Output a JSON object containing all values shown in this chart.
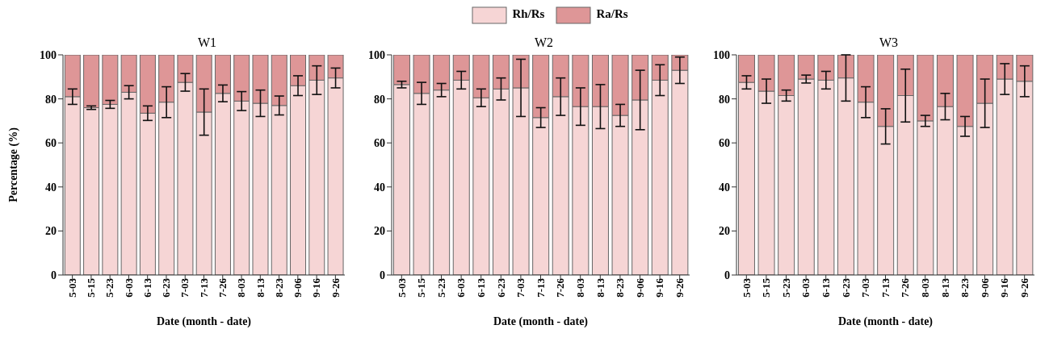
{
  "chart_data": [
    {
      "type": "bar",
      "title": "W1",
      "xlabel": "Date (month - date)",
      "ylabel": "Percentage (%)",
      "stacked": true,
      "legend": "top",
      "grid": false,
      "categories": [
        "5-03",
        "5-15",
        "5-23",
        "6-03",
        "6-13",
        "6-23",
        "7-03",
        "7-13",
        "7-26",
        "8-03",
        "8-13",
        "8-23",
        "9-06",
        "9-16",
        "9-26"
      ],
      "ylim": [
        0,
        100
      ],
      "yticks": [
        0,
        20,
        40,
        60,
        80,
        100
      ],
      "series": [
        {
          "name": "Rh/Rs",
          "color": "#f6d5d5",
          "values": [
            81,
            76,
            77.5,
            83,
            73.5,
            78.5,
            87.5,
            74,
            82.5,
            79,
            78,
            77,
            86,
            88.5,
            89.5
          ],
          "errors": [
            3.5,
            0.8,
            1.8,
            3,
            3.3,
            7,
            4,
            10.5,
            3.8,
            4.3,
            6,
            4.3,
            4.5,
            6.5,
            4.5
          ]
        },
        {
          "name": "Ra/Rs",
          "color": "#de9697",
          "values": [
            19,
            24,
            22.5,
            17,
            26.5,
            21.5,
            12.5,
            26,
            17.5,
            21,
            22,
            23,
            14,
            11.5,
            10.5
          ]
        }
      ]
    },
    {
      "type": "bar",
      "title": "W2",
      "xlabel": "Date (month - date)",
      "stacked": true,
      "grid": false,
      "categories": [
        "5-03",
        "5-15",
        "5-23",
        "6-03",
        "6-13",
        "6-23",
        "7-03",
        "7-13",
        "7-26",
        "8-03",
        "8-13",
        "8-23",
        "9-06",
        "9-16",
        "9-26"
      ],
      "ylim": [
        0,
        100
      ],
      "yticks": [
        0,
        20,
        40,
        60,
        80,
        100
      ],
      "series": [
        {
          "color": "#f6d5d5",
          "values": [
            86.5,
            82.5,
            84,
            88.5,
            80.5,
            84.5,
            85,
            71.5,
            81,
            76.5,
            76.5,
            72.5,
            79.5,
            88.5,
            93
          ],
          "errors": [
            1.5,
            5,
            3,
            4,
            4,
            5,
            13,
            4.5,
            8.5,
            8.5,
            10,
            5,
            13.5,
            7,
            6
          ]
        },
        {
          "color": "#de9697",
          "values": [
            13.5,
            17.5,
            16,
            11.5,
            19.5,
            15.5,
            15,
            28.5,
            19,
            23.5,
            23.5,
            27.5,
            20.5,
            11.5,
            7
          ]
        }
      ]
    },
    {
      "type": "bar",
      "title": "W3",
      "xlabel": "Date (month - date)",
      "stacked": true,
      "grid": false,
      "categories": [
        "5-03",
        "5-15",
        "5-23",
        "6-03",
        "6-13",
        "6-23",
        "7-03",
        "7-13",
        "7-26",
        "8-03",
        "8-13",
        "8-23",
        "9-06",
        "9-16",
        "9-26"
      ],
      "ylim": [
        0,
        100
      ],
      "yticks": [
        0,
        20,
        40,
        60,
        80,
        100
      ],
      "series": [
        {
          "color": "#f6d5d5",
          "values": [
            87.5,
            83.5,
            81.5,
            89,
            88.5,
            89.5,
            78.5,
            67.5,
            81.5,
            70,
            76.5,
            67.5,
            78,
            89,
            88
          ],
          "errors": [
            3,
            5.5,
            2.5,
            1.8,
            4,
            10.5,
            7,
            8,
            12,
            2.5,
            6,
            4.5,
            11,
            7,
            7
          ]
        },
        {
          "color": "#de9697",
          "values": [
            12.5,
            16.5,
            18.5,
            11,
            11.5,
            10.5,
            21.5,
            32.5,
            18.5,
            30,
            23.5,
            32.5,
            22,
            11,
            12
          ]
        }
      ]
    }
  ]
}
